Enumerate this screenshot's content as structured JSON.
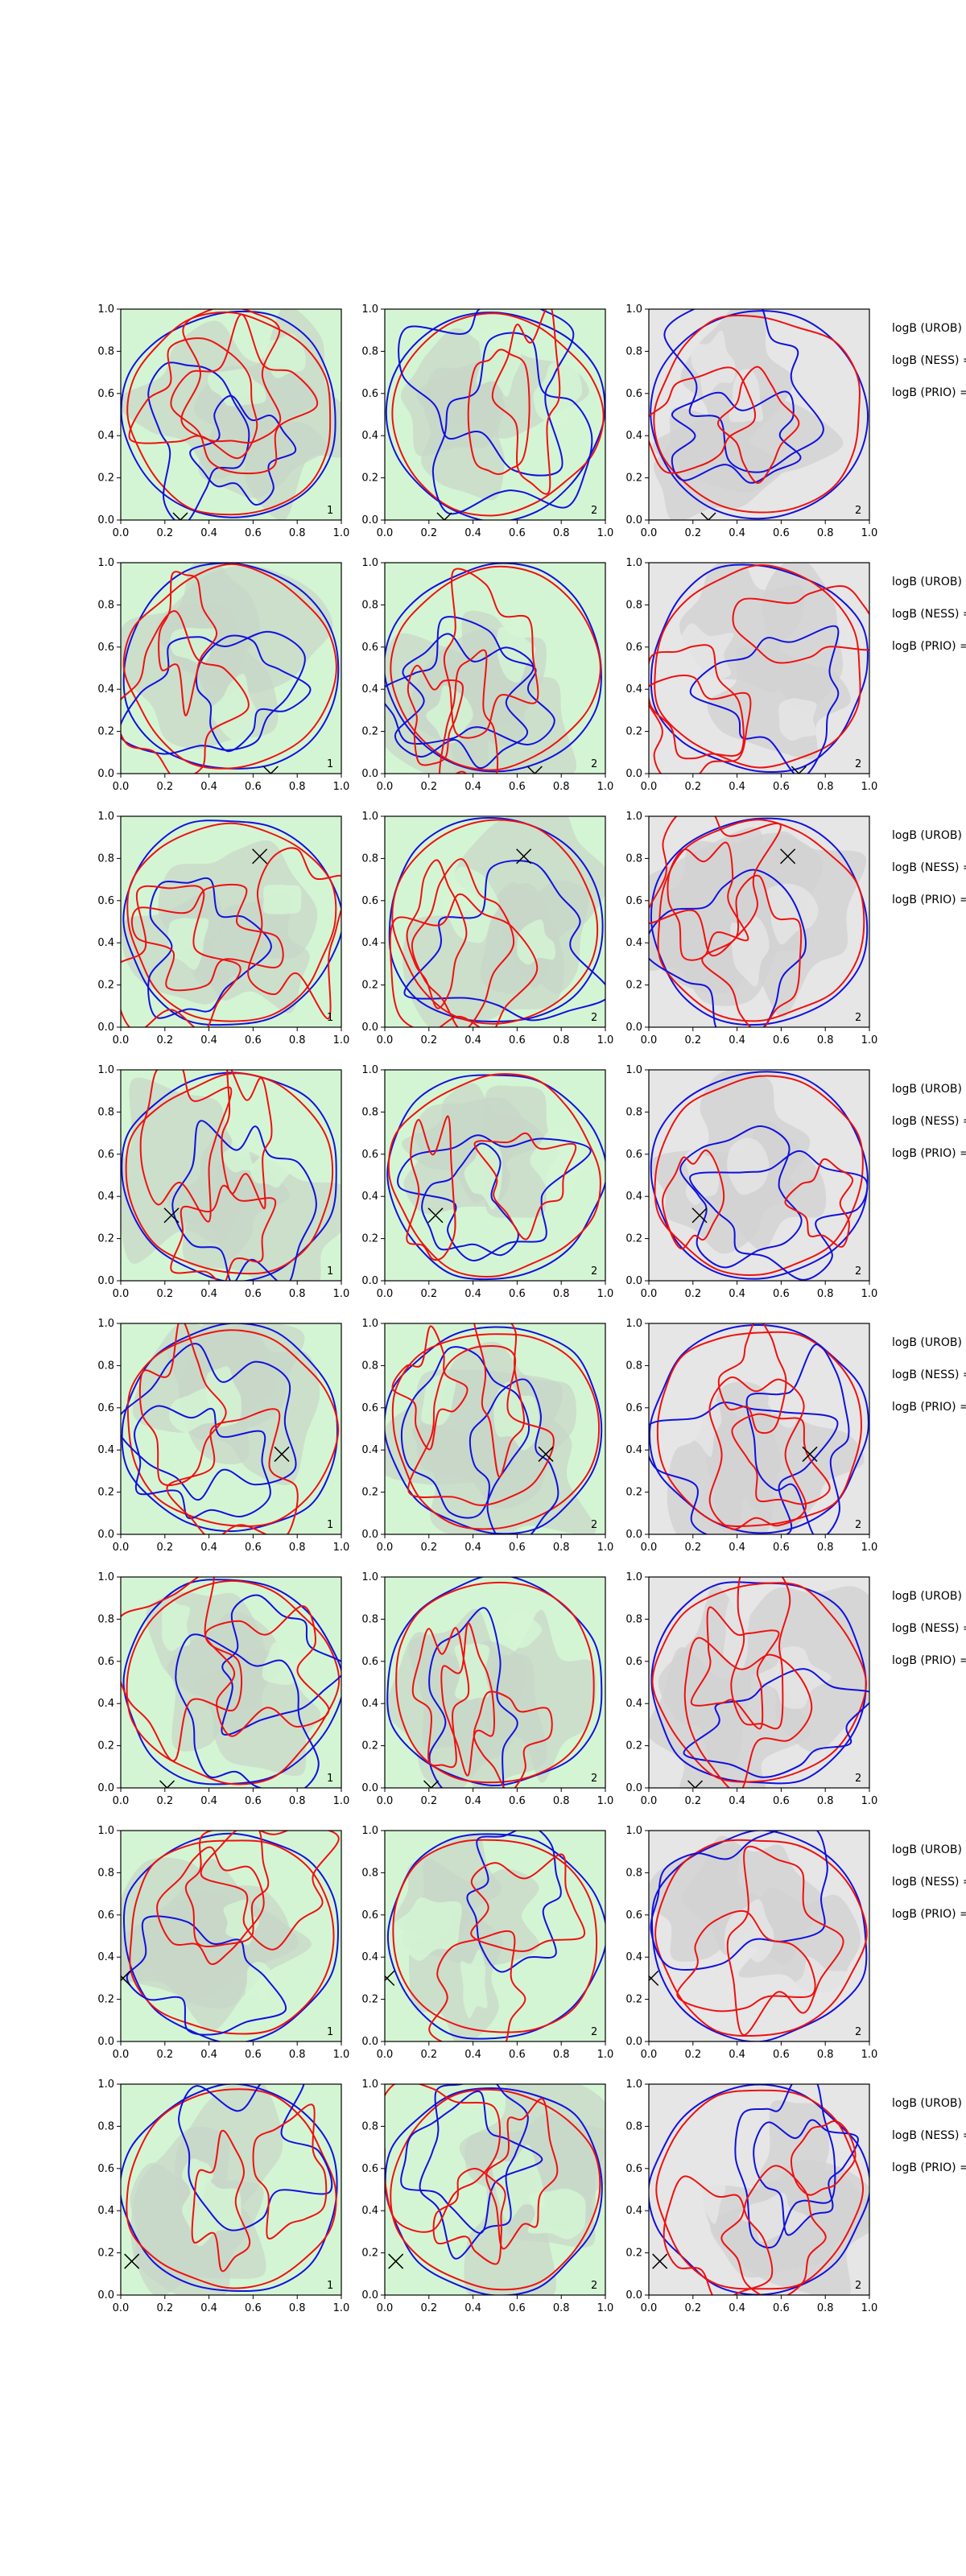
{
  "colors": {
    "green_bg": "#d4f5d4",
    "green_mid": "#bfe6bf",
    "gray_mid": "#c8d6c8",
    "gray_bg": "#e6e6e6",
    "gray_dark": "#d2d2d2",
    "blue_curve": "#1111dd",
    "red_curve": "#ee1111",
    "frame_blue": "#0000ff",
    "frame_red": "#ff0000",
    "marker": "#000000"
  },
  "annotation_labels": [
    "logB (UROB) =",
    "logB (NESS) =",
    "logB (PRIO) ="
  ],
  "panel_tags": [
    "1",
    "2",
    "2"
  ],
  "chart_data": {
    "type": "contour-grid",
    "rows": 8,
    "cols": 3,
    "xlim": [
      0,
      1
    ],
    "ylim": [
      0,
      1
    ],
    "xticks": [
      "0.0",
      "0.2",
      "0.4",
      "0.6",
      "0.8",
      "1.0"
    ],
    "yticks": [
      "0.0",
      "0.2",
      "0.4",
      "0.6",
      "0.8",
      "1.0"
    ],
    "column_backgrounds": [
      "green",
      "green",
      "gray"
    ],
    "markers": [
      {
        "row": 1,
        "x": 0.27,
        "y": 0.0
      },
      {
        "row": 2,
        "x": 0.68,
        "y": 0.0
      },
      {
        "row": 3,
        "x": 0.63,
        "y": 0.81
      },
      {
        "row": 4,
        "x": 0.23,
        "y": 0.31
      },
      {
        "row": 5,
        "x": 0.73,
        "y": 0.38
      },
      {
        "row": 6,
        "x": 0.21,
        "y": 0.0
      },
      {
        "row": 7,
        "x": 0.01,
        "y": 0.3
      },
      {
        "row": 8,
        "x": 0.05,
        "y": 0.16
      }
    ]
  }
}
